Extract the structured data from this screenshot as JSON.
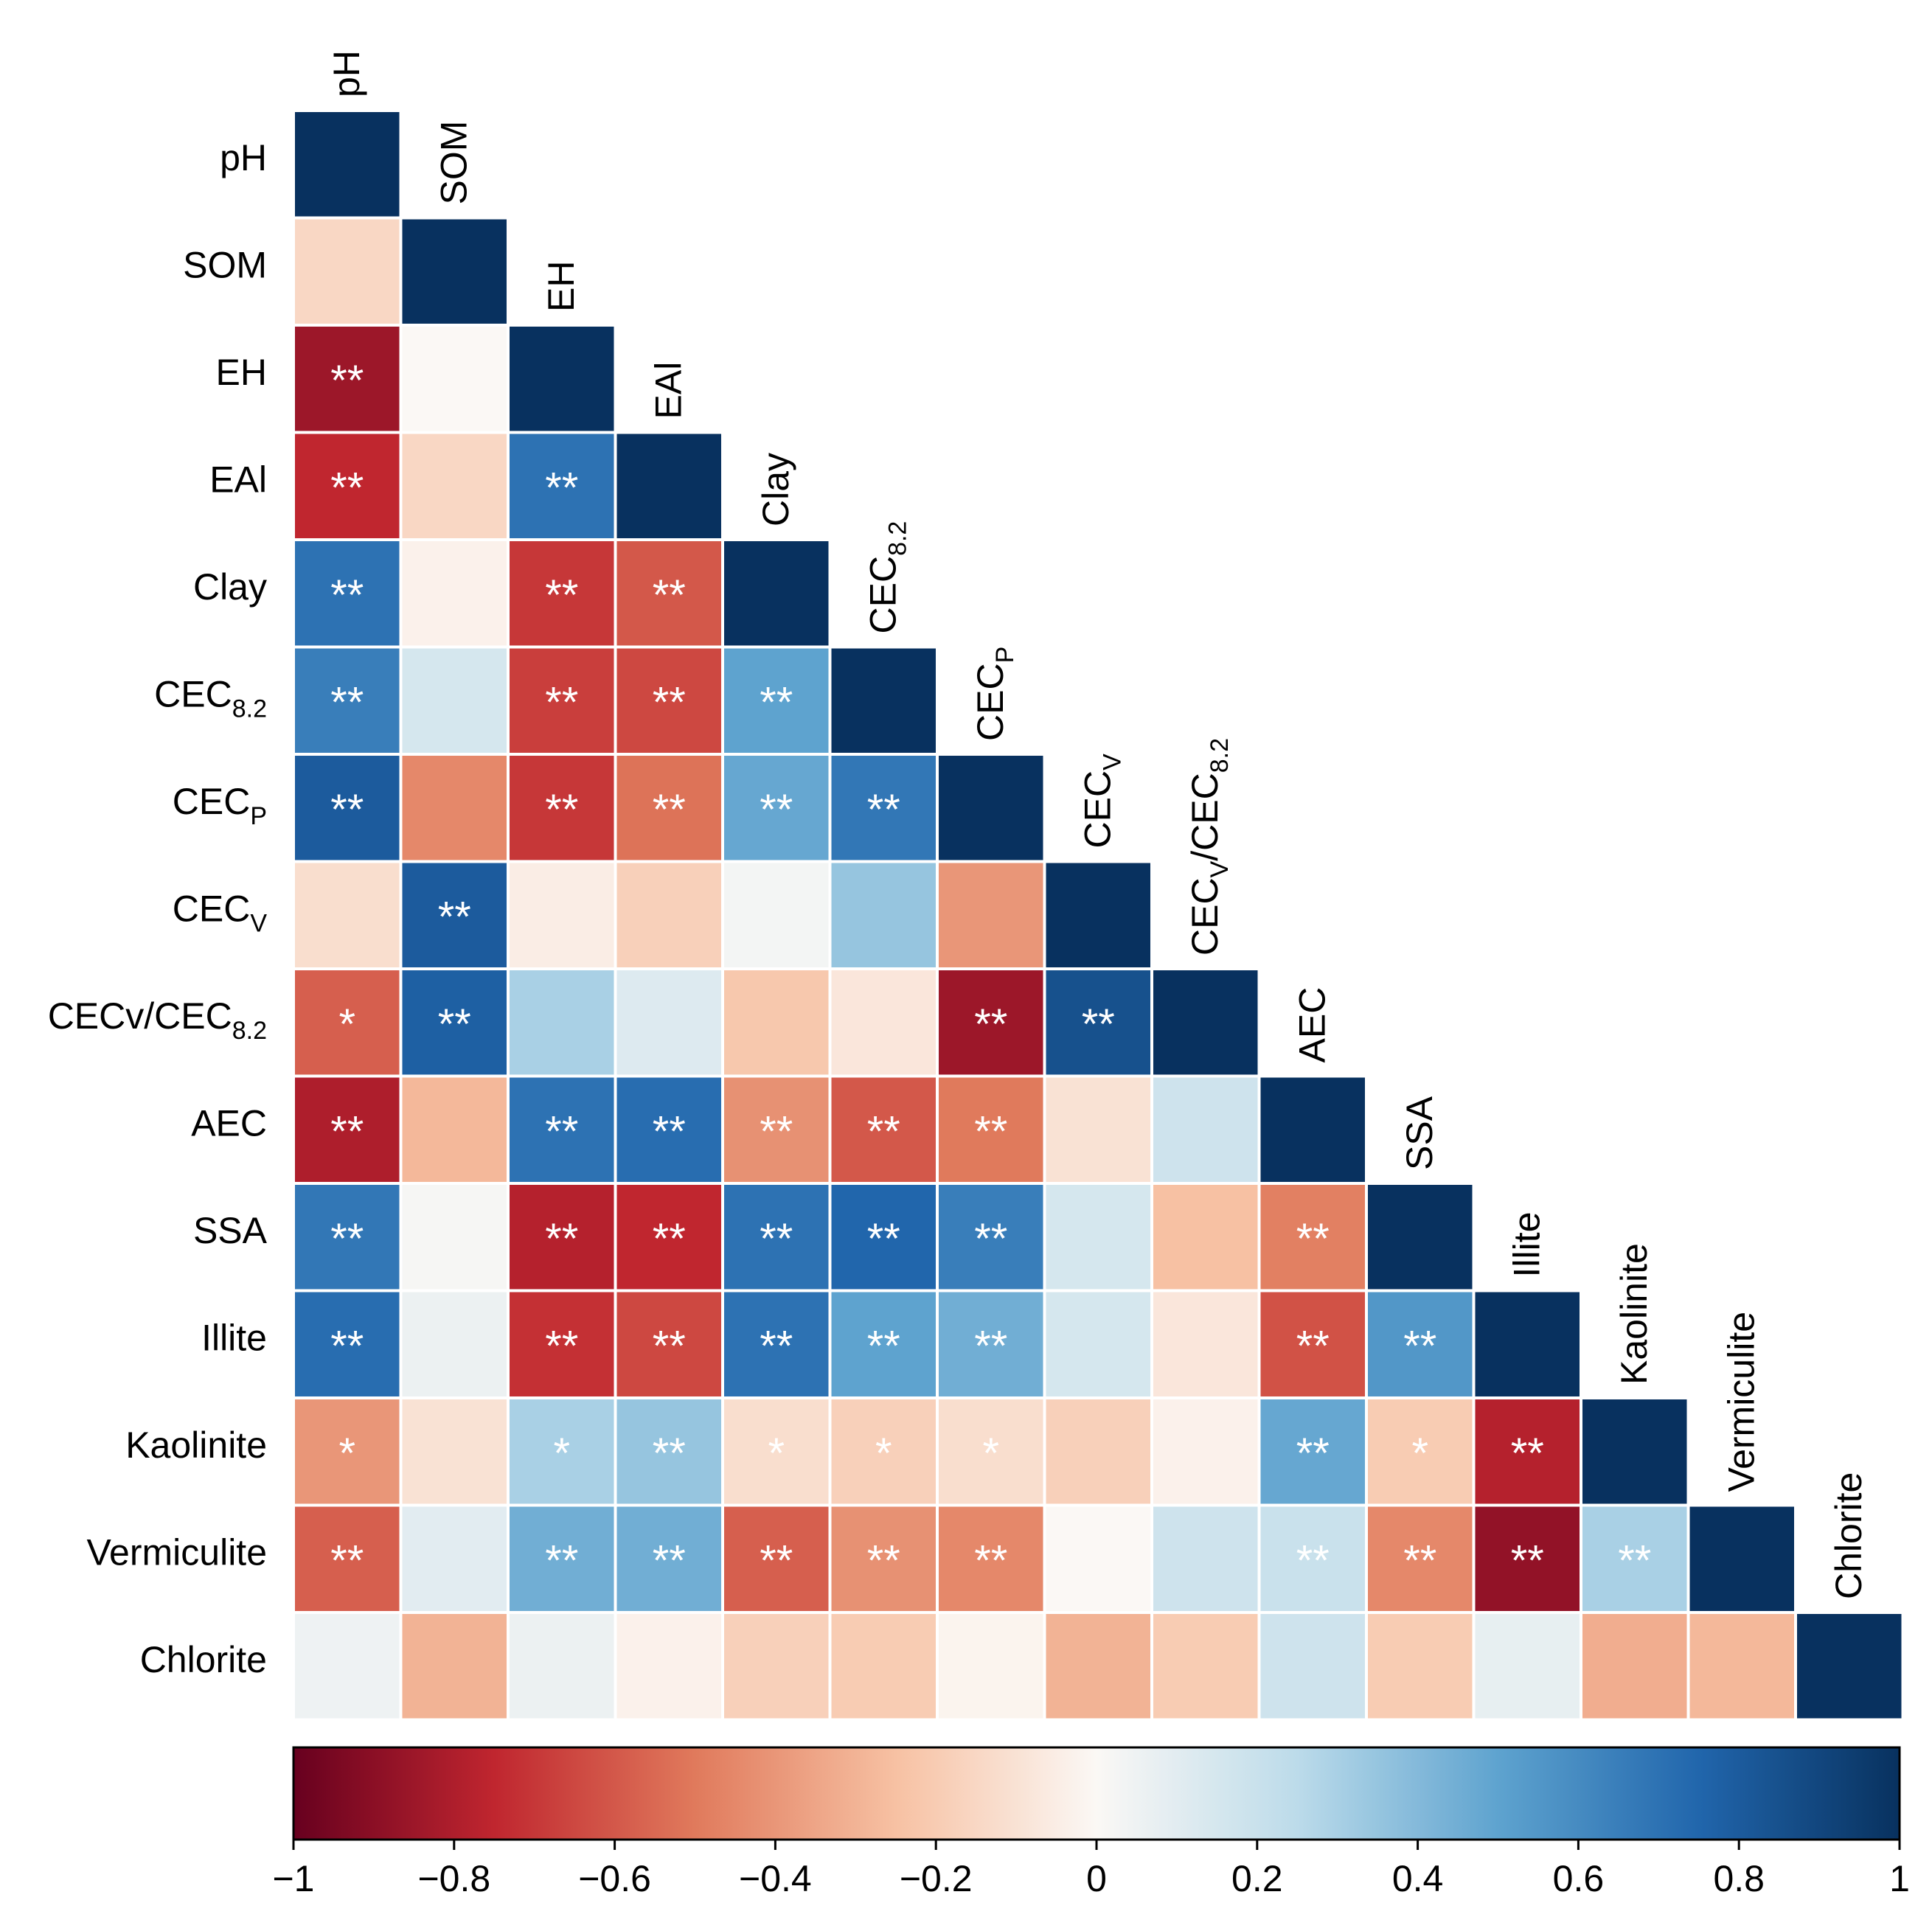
{
  "chart_data": {
    "type": "heatmap",
    "subtype": "lower-triangular correlation matrix",
    "variables": [
      {
        "main": "pH",
        "sub": ""
      },
      {
        "main": "SOM",
        "sub": ""
      },
      {
        "main": "EH",
        "sub": ""
      },
      {
        "main": "EAl",
        "sub": ""
      },
      {
        "main": "Clay",
        "sub": ""
      },
      {
        "main": "CEC",
        "sub": "8.2"
      },
      {
        "main": "CEC",
        "sub": "P"
      },
      {
        "main": "CEC",
        "sub": "V"
      },
      {
        "main": "CECv/CEC",
        "sub": "8.2"
      },
      {
        "main": "AEC",
        "sub": ""
      },
      {
        "main": "SSA",
        "sub": ""
      },
      {
        "main": "Illite",
        "sub": ""
      },
      {
        "main": "Kaolinite",
        "sub": ""
      },
      {
        "main": "Vermiculite",
        "sub": ""
      },
      {
        "main": "Chlorite",
        "sub": ""
      }
    ],
    "top_label_overrides": {
      "8": {
        "main": "CEC",
        "sub": "V",
        "rest": "/CEC",
        "sub2": "8.2"
      }
    },
    "correlations": [
      [
        1.0
      ],
      [
        -0.15,
        1.0
      ],
      [
        -0.85,
        0.0,
        1.0
      ],
      [
        -0.75,
        -0.15,
        0.7,
        1.0
      ],
      [
        0.7,
        -0.03,
        -0.7,
        -0.6,
        1.0
      ],
      [
        0.65,
        0.15,
        -0.68,
        -0.65,
        0.5,
        1.0
      ],
      [
        0.8,
        -0.45,
        -0.7,
        -0.52,
        0.48,
        0.68,
        1.0
      ],
      [
        -0.12,
        0.8,
        -0.05,
        -0.18,
        0.03,
        0.35,
        -0.4,
        1.0
      ],
      [
        -0.58,
        0.78,
        0.3,
        0.12,
        -0.22,
        -0.08,
        -0.85,
        0.85,
        1.0
      ],
      [
        -0.8,
        -0.28,
        0.7,
        0.72,
        -0.42,
        -0.6,
        -0.5,
        -0.1,
        0.18,
        1.0
      ],
      [
        0.68,
        0.02,
        -0.78,
        -0.75,
        0.7,
        0.75,
        0.65,
        0.15,
        -0.25,
        -0.48,
        1.0
      ],
      [
        0.72,
        0.06,
        -0.72,
        -0.65,
        0.7,
        0.5,
        0.45,
        0.15,
        -0.08,
        -0.62,
        0.55,
        1.0
      ],
      [
        -0.4,
        -0.1,
        0.3,
        0.35,
        -0.12,
        -0.18,
        -0.12,
        -0.18,
        -0.03,
        0.48,
        -0.2,
        -0.78,
        1.0
      ],
      [
        -0.58,
        0.1,
        0.45,
        0.45,
        -0.58,
        -0.42,
        -0.45,
        0.0,
        0.18,
        0.2,
        -0.45,
        -0.88,
        0.3,
        1.0
      ],
      [
        0.05,
        -0.3,
        0.06,
        -0.03,
        -0.18,
        -0.2,
        -0.02,
        -0.3,
        -0.2,
        0.18,
        -0.2,
        0.08,
        -0.32,
        -0.28,
        1.0
      ]
    ],
    "significance": [
      [
        ""
      ],
      [
        "",
        ""
      ],
      [
        "**",
        "",
        ""
      ],
      [
        "**",
        "",
        "**",
        ""
      ],
      [
        "**",
        "",
        "**",
        "**",
        ""
      ],
      [
        "**",
        "",
        "**",
        "**",
        "**",
        ""
      ],
      [
        "**",
        "",
        "**",
        "**",
        "**",
        "**",
        ""
      ],
      [
        "",
        "**",
        "",
        "",
        "",
        "",
        "",
        ""
      ],
      [
        "*",
        "**",
        "",
        "",
        "",
        "",
        "**",
        "**",
        ""
      ],
      [
        "**",
        "",
        "**",
        "**",
        "**",
        "**",
        "**",
        "",
        "",
        ""
      ],
      [
        "**",
        "",
        "**",
        "**",
        "**",
        "**",
        "**",
        "",
        "",
        "**",
        ""
      ],
      [
        "**",
        "",
        "**",
        "**",
        "**",
        "**",
        "**",
        "",
        "",
        "**",
        "**",
        ""
      ],
      [
        "*",
        "",
        "*",
        "**",
        "*",
        "*",
        "*",
        "",
        "",
        "**",
        "*",
        "**",
        ""
      ],
      [
        "**",
        "",
        "**",
        "**",
        "**",
        "**",
        "**",
        "",
        "",
        "**",
        "**",
        "**",
        "**",
        ""
      ],
      [
        "",
        "",
        "",
        "",
        "",
        "",
        "",
        "",
        "",
        "",
        "",
        "",
        "",
        "",
        ""
      ]
    ],
    "colorbar": {
      "range": [
        -1,
        1
      ],
      "tick_labels": [
        "−1",
        "−0.8",
        "−0.6",
        "−0.4",
        "−0.2",
        "0",
        "0.2",
        "0.4",
        "0.6",
        "0.8",
        "1"
      ],
      "colors": {
        "-1": "#67001f",
        "-0.75": "#c0262f",
        "-0.5": "#e07a5c",
        "-0.25": "#f7c1a3",
        "0": "#fbf8f5",
        "0.25": "#bcdbea",
        "0.5": "#5ea3cf",
        "0.75": "#2166ac",
        "1": "#08315f"
      }
    }
  }
}
